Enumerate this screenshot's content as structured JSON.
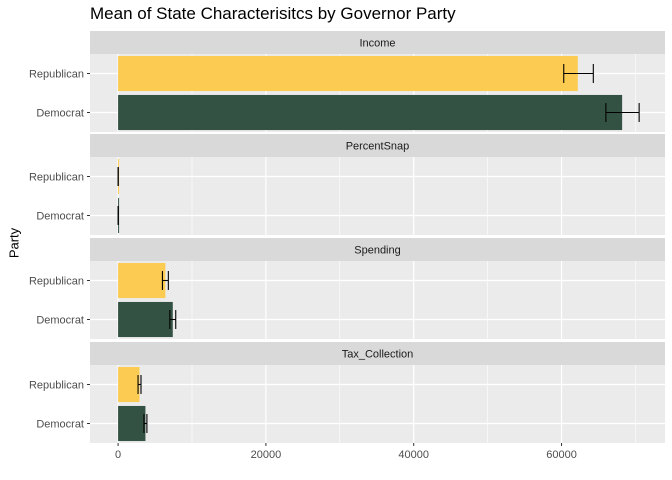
{
  "chart_data": {
    "type": "bar",
    "orientation": "horizontal",
    "title": "Mean of State Characterisitcs by Governor Party",
    "xlabel": "",
    "ylabel": "Party",
    "categories": [
      "Republican",
      "Democrat"
    ],
    "colors": {
      "Republican": "#fccb52",
      "Democrat": "#345243"
    },
    "xlim": [
      -3800,
      74000
    ],
    "x_ticks": [
      0,
      20000,
      40000,
      60000
    ],
    "x_tick_labels": [
      "0",
      "20000",
      "40000",
      "60000"
    ],
    "grid": true,
    "facets": [
      {
        "name": "Income",
        "bars": [
          {
            "category": "Republican",
            "value": 62200,
            "err_low": 60300,
            "err_high": 64300
          },
          {
            "category": "Democrat",
            "value": 68200,
            "err_low": 66000,
            "err_high": 70500
          }
        ]
      },
      {
        "name": "PercentSnap",
        "bars": [
          {
            "category": "Republican",
            "value": 13,
            "err_low": 11,
            "err_high": 15
          },
          {
            "category": "Democrat",
            "value": 14,
            "err_low": 12,
            "err_high": 16
          }
        ]
      },
      {
        "name": "Spending",
        "bars": [
          {
            "category": "Republican",
            "value": 6400,
            "err_low": 6000,
            "err_high": 6800
          },
          {
            "category": "Democrat",
            "value": 7400,
            "err_low": 7000,
            "err_high": 7800
          }
        ]
      },
      {
        "name": "Tax_Collection",
        "bars": [
          {
            "category": "Republican",
            "value": 2900,
            "err_low": 2700,
            "err_high": 3100
          },
          {
            "category": "Democrat",
            "value": 3700,
            "err_low": 3500,
            "err_high": 3900
          }
        ]
      }
    ]
  }
}
